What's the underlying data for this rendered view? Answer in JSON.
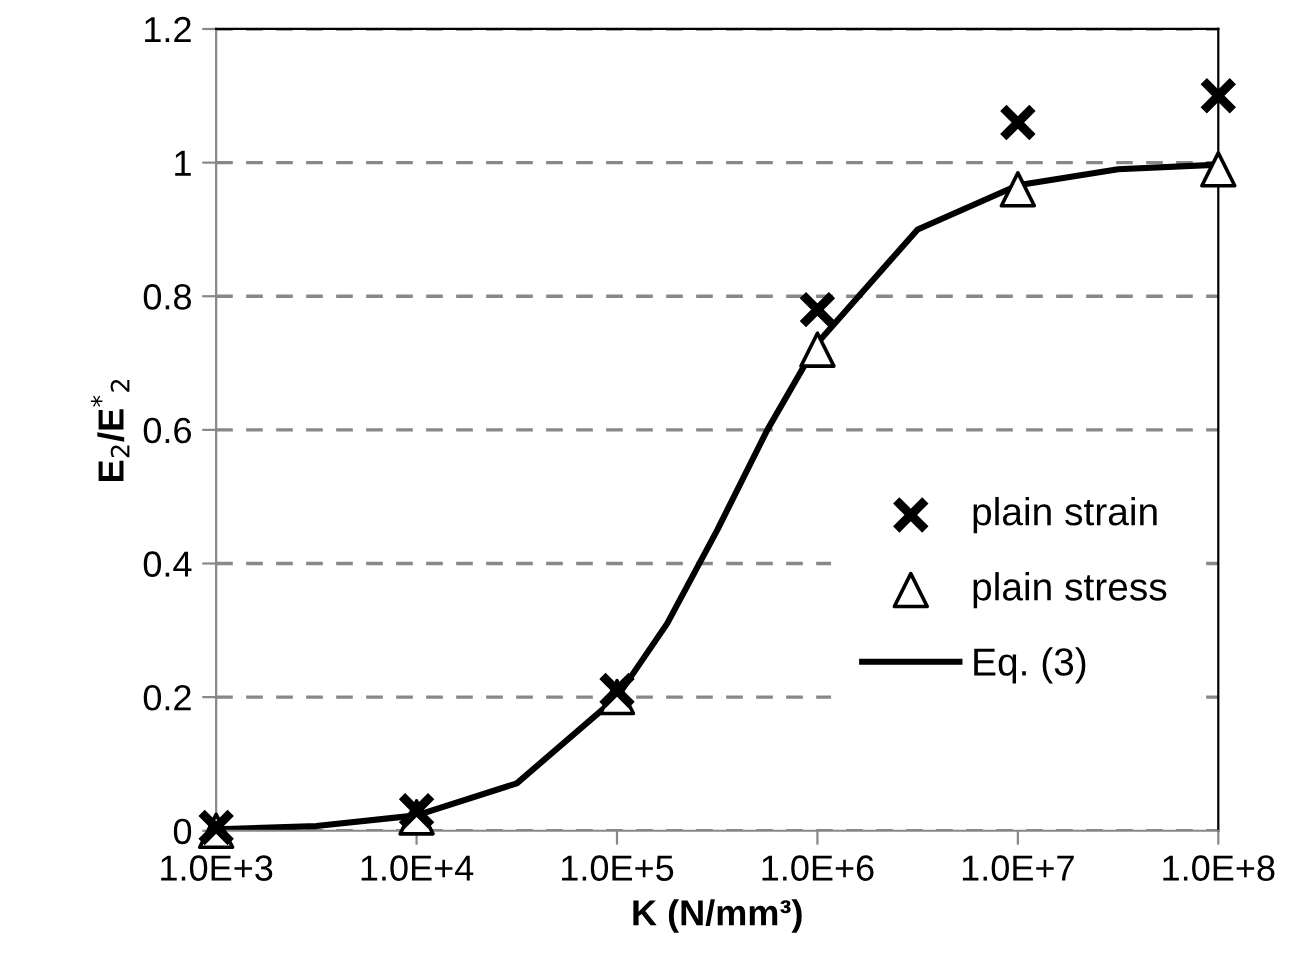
{
  "chart_data": {
    "type": "scatter",
    "xlabel": "K (N/mm³)",
    "ylabel": "E$_{2}$/E$^{*}$$_{2}$",
    "log": "x",
    "xlim": [
      1000,
      100000000
    ],
    "ylim": [
      0,
      1.2
    ],
    "xticks": [
      {
        "value": 1000,
        "label": "1.0E+3"
      },
      {
        "value": 10000,
        "label": "1.0E+4"
      },
      {
        "value": 100000,
        "label": "1.0E+5"
      },
      {
        "value": 1000000,
        "label": "1.0E+6"
      },
      {
        "value": 10000000,
        "label": "1.0E+7"
      },
      {
        "value": 100000000,
        "label": "1.0E+8"
      }
    ],
    "yticks": [
      0,
      0.2,
      0.4,
      0.6,
      0.8,
      1,
      1.2
    ],
    "grid": "y",
    "legend": "right",
    "series": [
      {
        "name": "plain strain",
        "marker": "cross",
        "color": "#000000",
        "x": [
          1000,
          10000,
          100000,
          1000000,
          10000000,
          100000000
        ],
        "values": [
          0.005,
          0.03,
          0.21,
          0.78,
          1.06,
          1.1
        ]
      },
      {
        "name": "plain stress",
        "marker": "triangle",
        "color": "#000000",
        "x": [
          1000,
          10000,
          100000,
          1000000,
          10000000,
          100000000
        ],
        "values": [
          0,
          0.02,
          0.2,
          0.72,
          0.96,
          0.99
        ]
      },
      {
        "name": "Eq. (3)",
        "type": "line",
        "line_style": "solid",
        "color": "#000000",
        "x": [
          1000,
          3162,
          10000,
          31623,
          100000,
          177828,
          316228,
          562341,
          1000000,
          3162278,
          10000000,
          31622777,
          100000000
        ],
        "values": [
          0.002,
          0.007,
          0.023,
          0.071,
          0.2,
          0.31,
          0.45,
          0.6,
          0.73,
          0.9,
          0.966,
          0.99,
          0.997
        ]
      }
    ]
  }
}
